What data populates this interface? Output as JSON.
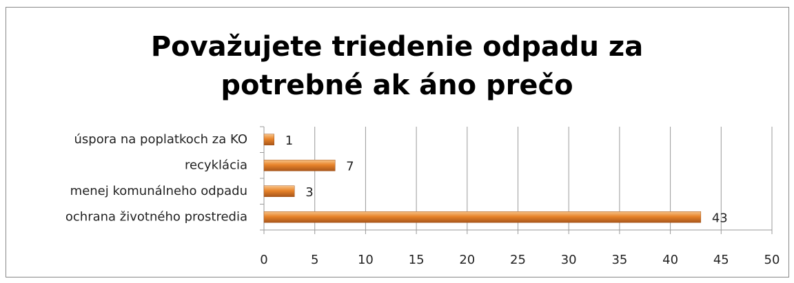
{
  "chart_data": {
    "type": "bar",
    "orientation": "horizontal",
    "title": "Považujete triedenie odpadu za potrebné ak áno prečo",
    "categories": [
      "úspora na poplatkoch za KO",
      "recyklácia",
      "menej komunálneho odpadu",
      "ochrana životného prostredia"
    ],
    "values": [
      1,
      7,
      3,
      43
    ],
    "color": "#e8842a",
    "xlim": [
      0,
      50
    ],
    "xticks": [
      0,
      5,
      10,
      15,
      20,
      25,
      30,
      35,
      40,
      45,
      50
    ],
    "grid": true
  }
}
